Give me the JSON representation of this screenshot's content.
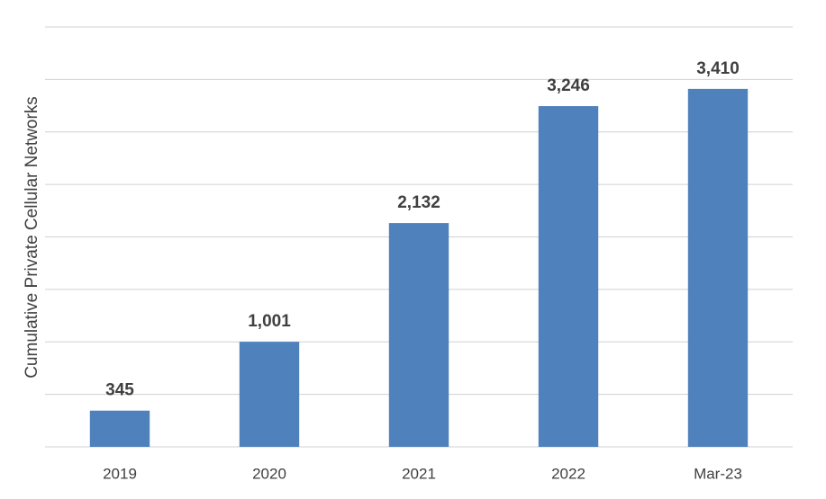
{
  "chart_data": {
    "type": "bar",
    "y_label": "Cumulative Private Cellular Networks",
    "categories": [
      "2019",
      "2020",
      "2021",
      "2022",
      "Mar-23"
    ],
    "values": [
      345,
      1001,
      2132,
      3246,
      3410
    ],
    "value_labels": [
      "345",
      "1,001",
      "2,132",
      "3,246",
      "3,410"
    ],
    "color": "#4f81bd",
    "ylim": [
      0,
      4000
    ],
    "yticks": [
      0,
      500,
      1000,
      1500,
      2000,
      2500,
      3000,
      3500,
      4000
    ],
    "grid": true
  }
}
